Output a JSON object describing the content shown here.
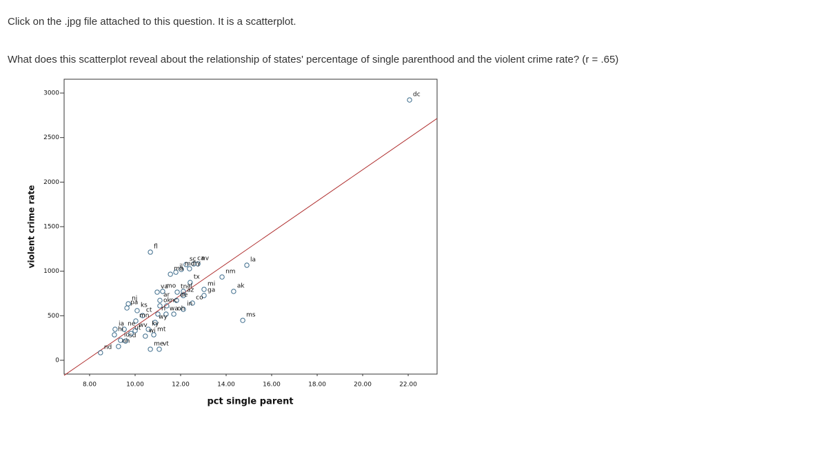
{
  "question": {
    "line1": "Click on the .jpg file attached to this question.  It is a scatterplot.",
    "line2": "What does this scatterplot reveal about the relationship of states' percentage of single parenthood and the violent crime rate? (r = .65)"
  },
  "chart_data": {
    "type": "scatter",
    "x_label": "pct single parent",
    "y_label": "violent crime rate",
    "color": "#3a6a8a",
    "line_color": "#b03030",
    "xlim": [
      6.88,
      23.27
    ],
    "ylim": [
      -155,
      3155
    ],
    "xticks": [
      {
        "value": 8,
        "label": "8.00"
      },
      {
        "value": 10,
        "label": "10.00"
      },
      {
        "value": 12,
        "label": "12.00"
      },
      {
        "value": 14,
        "label": "14.00"
      },
      {
        "value": 16,
        "label": "16.00"
      },
      {
        "value": 18,
        "label": "18.00"
      },
      {
        "value": 20,
        "label": "20.00"
      },
      {
        "value": 22,
        "label": "22.00"
      }
    ],
    "yticks": [
      0,
      500,
      1000,
      1500,
      2000,
      2500,
      3000
    ],
    "trend": {
      "slope": 176,
      "intercept": -1381
    },
    "labels": [
      "dc",
      "la",
      "nm",
      "ak",
      "ms",
      "mi",
      "ga",
      "nv",
      "ca",
      "ny",
      "sc",
      "md",
      "il",
      "fl",
      "ma",
      "tx",
      "al",
      "tn",
      "mo",
      "va",
      "az",
      "de",
      "co",
      "ar",
      "ok",
      "nc",
      "in",
      "nj",
      "pa",
      "ks",
      "ct",
      "ri",
      "wa",
      "oh",
      "mn",
      "ne",
      "ia",
      "hi",
      "wy",
      "ky",
      "mt",
      "id",
      "wi",
      "nh",
      "sd",
      "ut",
      "me",
      "vt",
      "nd",
      "wv"
    ],
    "x": [
      22.06,
      14.91,
      13.82,
      14.33,
      14.73,
      13.03,
      13.03,
      12.76,
      12.58,
      12.39,
      12.24,
      12.03,
      11.79,
      10.67,
      11.55,
      12.42,
      12.12,
      11.85,
      11.21,
      10.97,
      12.12,
      11.82,
      12.52,
      11.09,
      11.09,
      11.39,
      12.12,
      9.7,
      9.64,
      10.09,
      10.33,
      11.0,
      11.36,
      11.7,
      10.03,
      9.52,
      9.12,
      9.09,
      10.88,
      10.58,
      10.82,
      9.36,
      10.45,
      9.27,
      9.58,
      9.82,
      10.67,
      11.06,
      8.48,
      10.0
    ],
    "values": [
      2922,
      1067,
      935,
      773,
      448,
      796,
      727,
      1082,
      1082,
      1028,
      1075,
      1020,
      989,
      1214,
      966,
      873,
      773,
      765,
      773,
      765,
      727,
      672,
      642,
      672,
      611,
      611,
      572,
      634,
      587,
      557,
      502,
      518,
      518,
      518,
      441,
      348,
      348,
      286,
      425,
      348,
      286,
      224,
      271,
      155,
      216,
      301,
      124,
      124,
      85,
      332
    ]
  }
}
